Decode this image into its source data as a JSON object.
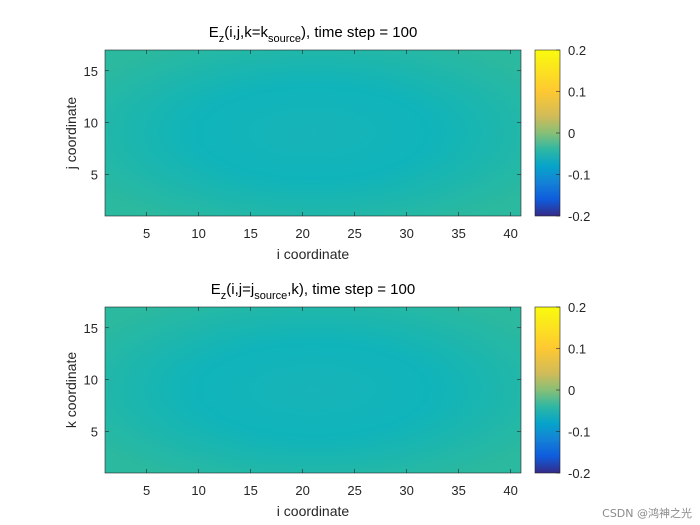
{
  "chart_data": [
    {
      "type": "heatmap",
      "title": {
        "prefix": "E",
        "sub1": "z",
        "mid": "(i,j,k=k",
        "sub2": "source",
        "suffix": "), time step = 100"
      },
      "xlabel": "i coordinate",
      "ylabel": "j coordinate",
      "xlim": [
        1,
        41
      ],
      "ylim": [
        1,
        17
      ],
      "xticks": [
        5,
        10,
        15,
        20,
        25,
        30,
        35,
        40
      ],
      "yticks": [
        5,
        10,
        15
      ],
      "center": [
        21,
        9
      ],
      "field_values": {
        "edge": 0.04,
        "mid_ring": 0.015,
        "center": 0.02
      },
      "colorbar": {
        "clim": [
          -0.2,
          0.2
        ],
        "ticks": [
          0.2,
          0.1,
          0,
          -0.1,
          -0.2
        ],
        "tick_labels": [
          "0.2",
          "0.1",
          "0",
          "-0.1",
          "-0.2"
        ],
        "colormap": "parula"
      }
    },
    {
      "type": "heatmap",
      "title": {
        "prefix": "E",
        "sub1": "z",
        "mid": "(i,j=j",
        "sub2": "source",
        "suffix": ",k), time step = 100"
      },
      "xlabel": "i coordinate",
      "ylabel": "k coordinate",
      "xlim": [
        1,
        41
      ],
      "ylim": [
        1,
        17
      ],
      "xticks": [
        5,
        10,
        15,
        20,
        25,
        30,
        35,
        40
      ],
      "yticks": [
        5,
        10,
        15
      ],
      "center": [
        21,
        9
      ],
      "field_values": {
        "edge": 0.04,
        "mid_ring": 0.015,
        "center": 0.02
      },
      "colorbar": {
        "clim": [
          -0.2,
          0.2
        ],
        "ticks": [
          0.2,
          0.1,
          0,
          -0.1,
          -0.2
        ],
        "tick_labels": [
          "0.2",
          "0.1",
          "0",
          "-0.1",
          "-0.2"
        ],
        "colormap": "parula"
      }
    }
  ],
  "watermark": "CSDN @鸿神之光"
}
